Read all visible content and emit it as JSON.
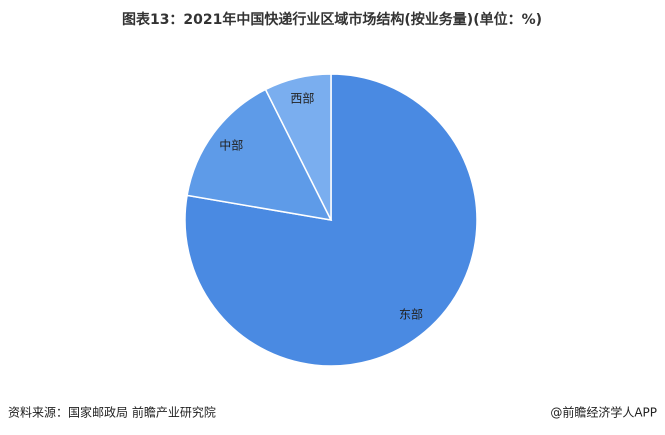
{
  "chart_data": {
    "type": "pie",
    "title": "图表13：2021年中国快递行业区域市场结构(按业务量)(单位：%)",
    "categories": [
      "东部",
      "中部",
      "西部"
    ],
    "values": [
      77.7,
      14.9,
      7.4
    ],
    "colors": [
      "#4a8ae2",
      "#5e9be8",
      "#7aaeef"
    ],
    "source": "资料来源：国家邮政局 前瞻产业研究院",
    "credit": "@前瞻经济学人APP"
  }
}
